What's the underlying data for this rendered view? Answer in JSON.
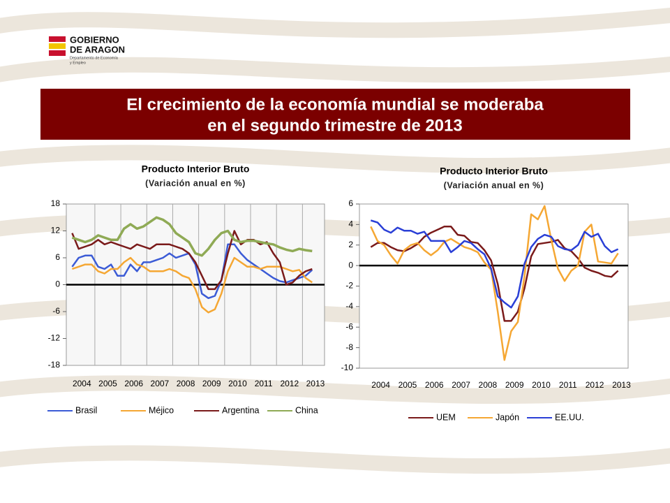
{
  "slide": {
    "logo": [
      "GOBIERNO",
      "DE ARAGON",
      "Departamento de Economía",
      "y Empleo"
    ],
    "title": [
      "El crecimiento de la economía mundial se moderaba",
      "en el segundo trimestre de 2013"
    ]
  },
  "chart_data": [
    {
      "type": "line",
      "title": "Producto Interior Bruto",
      "subtitle": "(Variación anual en %)",
      "x": [
        2004.125,
        2004.375,
        2004.625,
        2004.875,
        2005.125,
        2005.375,
        2005.625,
        2005.875,
        2006.125,
        2006.375,
        2006.625,
        2006.875,
        2007.125,
        2007.375,
        2007.625,
        2007.875,
        2008.125,
        2008.375,
        2008.625,
        2008.875,
        2009.125,
        2009.375,
        2009.625,
        2009.875,
        2010.125,
        2010.375,
        2010.625,
        2010.875,
        2011.125,
        2011.375,
        2011.625,
        2011.875,
        2012.125,
        2012.375,
        2012.625,
        2012.875,
        2013.125,
        2013.375
      ],
      "xlim": [
        2003.9,
        2013.85
      ],
      "xticks": [
        {
          "value": 2004.5,
          "label": "2004"
        },
        {
          "value": 2005.5,
          "label": "2005"
        },
        {
          "value": 2006.5,
          "label": "2006"
        },
        {
          "value": 2007.5,
          "label": "2007"
        },
        {
          "value": 2008.5,
          "label": "2008"
        },
        {
          "value": 2009.5,
          "label": "2009"
        },
        {
          "value": 2010.5,
          "label": "2010"
        },
        {
          "value": 2011.5,
          "label": "2011"
        },
        {
          "value": 2012.5,
          "label": "2012"
        },
        {
          "value": 2013.5,
          "label": "2013"
        }
      ],
      "ylim": [
        -18,
        18
      ],
      "yticks": [
        -18,
        -12,
        -6,
        0,
        6,
        12,
        18
      ],
      "grid": "x",
      "zero_line": true,
      "legend": "bottom",
      "series": [
        {
          "name": "Brasil",
          "color": "#3b5bd6",
          "values": [
            4,
            6,
            6.5,
            6.5,
            4,
            3.5,
            4.5,
            2,
            2,
            4.5,
            3,
            5,
            5,
            5.5,
            6,
            7,
            6,
            6.5,
            7,
            4.5,
            -2,
            -3,
            -2.5,
            1,
            9,
            9,
            7,
            5.5,
            4.5,
            3.5,
            2.5,
            1.5,
            0.8,
            0.5,
            1,
            1.5,
            2,
            3.3
          ]
        },
        {
          "name": "Méjico",
          "color": "#f5a733",
          "values": [
            3.5,
            4,
            4.5,
            4.5,
            3,
            2.5,
            3.5,
            3.5,
            5,
            6,
            4.5,
            4,
            3,
            3,
            3,
            3.5,
            3,
            2,
            1.5,
            -1,
            -5,
            -6.2,
            -5.5,
            -2,
            3,
            6,
            5,
            4,
            4,
            3.5,
            4,
            4,
            4,
            3.5,
            3,
            3.3,
            1.5,
            0.5
          ]
        },
        {
          "name": "Argentina",
          "color": "#7a1a1a",
          "values": [
            11.5,
            8,
            8.5,
            9,
            10,
            9,
            9.5,
            9,
            8.5,
            8,
            9,
            8.5,
            8,
            9,
            9,
            9,
            8.5,
            8,
            7,
            5,
            2,
            -1,
            -1,
            1,
            7,
            12,
            9,
            10,
            10,
            9,
            9.5,
            7,
            5,
            0,
            0.5,
            2,
            3,
            3.5
          ]
        },
        {
          "name": "China",
          "color": "#8faa55",
          "values": [
            10.5,
            10,
            9.5,
            10,
            11,
            10.5,
            10,
            10,
            12.5,
            13.5,
            12.5,
            13,
            14,
            15,
            14.5,
            13.5,
            11.5,
            10.5,
            9.5,
            7,
            6.5,
            8,
            10,
            11.5,
            12,
            10,
            9.5,
            9.8,
            9.8,
            9.5,
            9.2,
            9,
            8.3,
            7.8,
            7.5,
            8,
            7.7,
            7.5
          ]
        }
      ]
    },
    {
      "type": "line",
      "title": "Producto Interior Bruto",
      "subtitle": "(Variación anual en %)",
      "x": [
        2004.125,
        2004.375,
        2004.625,
        2004.875,
        2005.125,
        2005.375,
        2005.625,
        2005.875,
        2006.125,
        2006.375,
        2006.625,
        2006.875,
        2007.125,
        2007.375,
        2007.625,
        2007.875,
        2008.125,
        2008.375,
        2008.625,
        2008.875,
        2009.125,
        2009.375,
        2009.625,
        2009.875,
        2010.125,
        2010.375,
        2010.625,
        2010.875,
        2011.125,
        2011.375,
        2011.625,
        2011.875,
        2012.125,
        2012.375,
        2012.625,
        2012.875,
        2013.125,
        2013.375
      ],
      "xlim": [
        2003.7,
        2013.75
      ],
      "xticks": [
        {
          "value": 2004.5,
          "label": "2004"
        },
        {
          "value": 2005.5,
          "label": "2005"
        },
        {
          "value": 2006.5,
          "label": "2006"
        },
        {
          "value": 2007.5,
          "label": "2007"
        },
        {
          "value": 2008.5,
          "label": "2008"
        },
        {
          "value": 2009.5,
          "label": "2009"
        },
        {
          "value": 2010.5,
          "label": "2010"
        },
        {
          "value": 2011.5,
          "label": "2011"
        },
        {
          "value": 2012.5,
          "label": "2012"
        },
        {
          "value": 2013.5,
          "label": "2013"
        }
      ],
      "ylim": [
        -10,
        6
      ],
      "yticks": [
        -10,
        -8,
        -6,
        -4,
        -2,
        0,
        2,
        4,
        6
      ],
      "grid": false,
      "zero_line": true,
      "legend": "bottom",
      "series": [
        {
          "name": "UEM",
          "color": "#7a1a1a",
          "values": [
            1.8,
            2.2,
            2.2,
            1.8,
            1.5,
            1.4,
            1.7,
            2.1,
            2.8,
            3.2,
            3.5,
            3.8,
            3.8,
            3.0,
            2.9,
            2.3,
            2.2,
            1.5,
            0.5,
            -1.8,
            -5.4,
            -5.4,
            -4.5,
            -2.2,
            0.9,
            2.1,
            2.2,
            2.3,
            2.5,
            1.7,
            1.4,
            0.7,
            -0.2,
            -0.5,
            -0.7,
            -1.0,
            -1.1,
            -0.5
          ]
        },
        {
          "name": "Japón",
          "color": "#f5a733",
          "values": [
            3.8,
            2.4,
            2.0,
            1.0,
            0.2,
            1.5,
            2.0,
            2.2,
            1.5,
            1.0,
            1.5,
            2.3,
            2.6,
            2.2,
            1.8,
            1.6,
            1.3,
            0.3,
            -0.4,
            -4.5,
            -9.2,
            -6.4,
            -5.5,
            -1.0,
            5.0,
            4.5,
            5.8,
            2.5,
            -0.3,
            -1.5,
            -0.5,
            0.0,
            3.3,
            4.0,
            0.4,
            0.3,
            0.2,
            1.2
          ]
        },
        {
          "name": "EE.UU.",
          "color": "#2a3fd6",
          "values": [
            4.4,
            4.2,
            3.5,
            3.2,
            3.7,
            3.4,
            3.4,
            3.1,
            3.3,
            2.4,
            2.4,
            2.4,
            1.3,
            1.8,
            2.4,
            2.2,
            1.6,
            1.1,
            -0.3,
            -3.0,
            -3.6,
            -4.1,
            -3.0,
            0.2,
            1.8,
            2.6,
            3.0,
            2.8,
            1.9,
            1.6,
            1.5,
            2.0,
            3.3,
            2.8,
            3.1,
            1.9,
            1.3,
            1.6
          ]
        }
      ]
    }
  ]
}
